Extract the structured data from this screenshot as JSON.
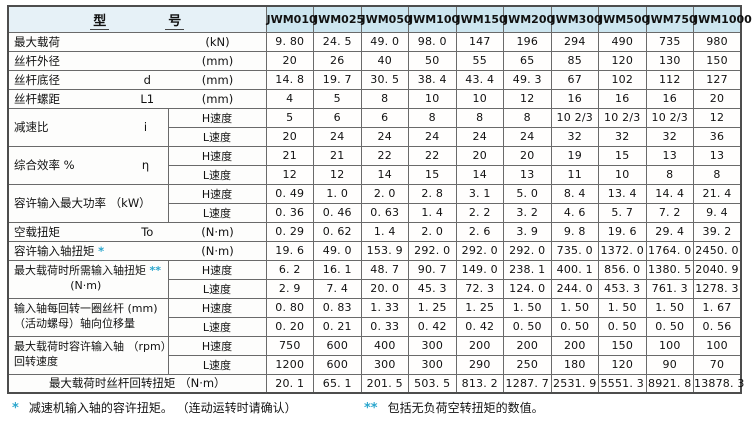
{
  "colors": {
    "header_bg": "#cde6f0",
    "header_label_bg": "#e6f1f7",
    "asterisk_accent": "#2ba6cd",
    "border": "#6a6a6a"
  },
  "labels": {
    "h_speed": "H速度",
    "l_speed": "L速度"
  },
  "header": {
    "model_char_1": "型",
    "model_char_2": "号",
    "models": [
      "JWM010",
      "JWM025",
      "JWM050",
      "JWM100",
      "JWM150",
      "JWM200",
      "JWM300",
      "JWM500",
      "JWM750",
      "JWM1000"
    ]
  },
  "rows": {
    "max_load": {
      "name": "最大载荷",
      "unit": "(kN)",
      "values": [
        "9. 80",
        "24. 5",
        "49. 0",
        "98. 0",
        "147",
        "196",
        "294",
        "490",
        "735",
        "980"
      ]
    },
    "screw_od": {
      "name": "丝杆外径",
      "unit": "(mm)",
      "values": [
        "20",
        "26",
        "40",
        "50",
        "55",
        "65",
        "85",
        "120",
        "130",
        "150"
      ]
    },
    "screw_root": {
      "name": "丝杆底径",
      "symbol": "d",
      "unit": "(mm)",
      "values": [
        "14. 8",
        "19. 7",
        "30. 5",
        "38. 4",
        "43. 4",
        "49. 3",
        "67",
        "102",
        "112",
        "127"
      ]
    },
    "screw_pitch": {
      "name": "丝杆螺距",
      "symbol": "L1",
      "unit": "(mm)",
      "values": [
        "4",
        "5",
        "8",
        "10",
        "10",
        "12",
        "16",
        "16",
        "16",
        "20"
      ]
    },
    "ratio": {
      "name": "减速比",
      "symbol": "i",
      "h": [
        "5",
        "6",
        "6",
        "8",
        "8",
        "8",
        "10 2/3",
        "10 2/3",
        "10 2/3",
        "12"
      ],
      "l": [
        "20",
        "24",
        "24",
        "24",
        "24",
        "24",
        "32",
        "32",
        "32",
        "36"
      ]
    },
    "efficiency": {
      "name": "综合效率  %",
      "symbol": "η",
      "h": [
        "21",
        "21",
        "22",
        "22",
        "20",
        "20",
        "19",
        "15",
        "13",
        "13"
      ],
      "l": [
        "12",
        "12",
        "14",
        "15",
        "14",
        "13",
        "11",
        "10",
        "8",
        "8"
      ]
    },
    "max_power": {
      "name": "容许输入最大功率 （kW）",
      "h": [
        "0. 49",
        "1. 0",
        "2. 0",
        "2. 8",
        "3. 1",
        "5. 0",
        "8. 4",
        "13. 4",
        "14. 4",
        "21. 4"
      ],
      "l": [
        "0. 36",
        "0. 46",
        "0. 63",
        "1. 4",
        "2. 2",
        "3. 2",
        "4. 6",
        "5. 7",
        "7. 2",
        "9. 4"
      ]
    },
    "no_load_torque": {
      "name": "空载扭矩",
      "symbol": "To",
      "unit": "(N·m)",
      "values": [
        "0. 29",
        "0. 62",
        "1. 4",
        "2. 0",
        "2. 6",
        "3. 9",
        "9. 8",
        "19. 6",
        "29. 4",
        "39. 2"
      ]
    },
    "perm_input_torque": {
      "name": "容许输入轴扭矩",
      "mark": "*",
      "unit": "(N·m)",
      "values": [
        "19. 6",
        "49. 0",
        "153. 9",
        "292. 0",
        "292. 0",
        "292. 0",
        "735. 0",
        "1372. 0",
        "1764. 0",
        "2450. 0"
      ]
    },
    "req_torque": {
      "name": "最大载荷时所需输入轴扭矩",
      "mark": "**",
      "unit": "(N·m)",
      "h": [
        "6. 2",
        "16. 1",
        "48. 7",
        "90. 7",
        "149. 0",
        "238. 1",
        "400. 1",
        "856. 0",
        "1380. 5",
        "2040. 9"
      ],
      "l": [
        "2. 9",
        "7. 4",
        "20. 0",
        "45. 3",
        "72. 3",
        "124. 0",
        "244. 0",
        "453. 3",
        "761. 3",
        "1278. 3"
      ]
    },
    "displacement": {
      "line1": "输入轴每回转一圈丝杆  (mm)",
      "line2": "（活动螺母）轴向位移量",
      "h": [
        "0. 80",
        "0. 83",
        "1. 33",
        "1. 25",
        "1. 25",
        "1. 50",
        "1. 50",
        "1. 50",
        "1. 50",
        "1. 67"
      ],
      "l": [
        "0. 20",
        "0. 21",
        "0. 33",
        "0. 42",
        "0. 42",
        "0. 50",
        "0. 50",
        "0. 50",
        "0. 50",
        "0. 56"
      ]
    },
    "rpm": {
      "line1": "最大载荷时容许输入轴 （rpm）",
      "line2": "回转速度",
      "h": [
        "750",
        "600",
        "400",
        "300",
        "200",
        "200",
        "200",
        "150",
        "100",
        "100"
      ],
      "l": [
        "1200",
        "600",
        "300",
        "300",
        "290",
        "250",
        "180",
        "120",
        "90",
        "70"
      ]
    },
    "screw_torque": {
      "name": "最大载荷时丝杆回转扭矩 （N·m）",
      "values": [
        "20. 1",
        "65. 1",
        "201. 5",
        "503. 5",
        "813. 2",
        "1287. 7",
        "2531. 9",
        "5551. 3",
        "8921. 8",
        "13878. 3"
      ]
    }
  },
  "footnotes": {
    "f1_mark": "*",
    "f1_text": "减速机输入轴的容许扭矩。 （连动运转时请确认）",
    "f2_mark": "**",
    "f2_text": "包括无负荷空转扭矩的数值。"
  }
}
